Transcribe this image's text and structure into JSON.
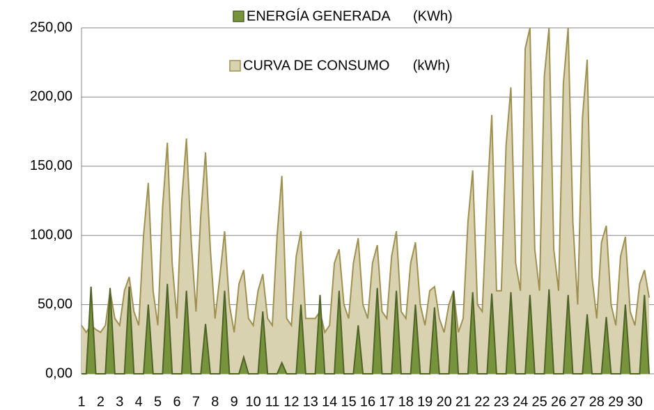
{
  "chart_data": {
    "type": "area",
    "x": [
      1,
      1.25,
      1.5,
      1.75,
      2,
      2.25,
      2.5,
      2.75,
      3,
      3.25,
      3.5,
      3.75,
      4,
      4.25,
      4.5,
      4.75,
      5,
      5.25,
      5.5,
      5.75,
      6,
      6.25,
      6.5,
      6.75,
      7,
      7.25,
      7.5,
      7.75,
      8,
      8.25,
      8.5,
      8.75,
      9,
      9.25,
      9.5,
      9.75,
      10,
      10.25,
      10.5,
      10.75,
      11,
      11.25,
      11.5,
      11.75,
      12,
      12.25,
      12.5,
      12.75,
      13,
      13.25,
      13.5,
      13.75,
      14,
      14.25,
      14.5,
      14.75,
      15,
      15.25,
      15.5,
      15.75,
      16,
      16.25,
      16.5,
      16.75,
      17,
      17.25,
      17.5,
      17.75,
      18,
      18.25,
      18.5,
      18.75,
      19,
      19.25,
      19.5,
      19.75,
      20,
      20.25,
      20.5,
      20.75,
      21,
      21.25,
      21.5,
      21.75,
      22,
      22.25,
      22.5,
      22.75,
      23,
      23.25,
      23.5,
      23.75,
      24,
      24.25,
      24.5,
      24.75,
      25,
      25.25,
      25.5,
      25.75,
      26,
      26.25,
      26.5,
      26.75,
      27,
      27.25,
      27.5,
      27.75,
      28,
      28.25,
      28.5,
      28.75,
      29,
      29.25,
      29.5,
      29.75,
      30,
      30.25,
      30.5,
      30.75
    ],
    "series": [
      {
        "name": "CURVA DE CONSUMO      (kWh)",
        "color": "#d8d2b0",
        "stroke": "#a09050",
        "values": [
          35,
          30,
          35,
          32,
          30,
          35,
          60,
          40,
          35,
          60,
          70,
          45,
          35,
          100,
          138,
          60,
          35,
          120,
          167,
          80,
          40,
          125,
          170,
          95,
          45,
          115,
          160,
          90,
          40,
          70,
          103,
          50,
          30,
          65,
          75,
          40,
          35,
          60,
          72,
          40,
          35,
          100,
          143,
          40,
          35,
          85,
          103,
          40,
          40,
          40,
          45,
          30,
          35,
          80,
          90,
          50,
          40,
          80,
          98,
          50,
          40,
          80,
          93,
          45,
          40,
          85,
          103,
          45,
          40,
          80,
          95,
          50,
          35,
          60,
          63,
          40,
          30,
          50,
          60,
          30,
          40,
          110,
          147,
          50,
          45,
          125,
          187,
          60,
          60,
          165,
          207,
          80,
          60,
          235,
          250,
          90,
          60,
          215,
          250,
          90,
          60,
          210,
          250,
          110,
          50,
          185,
          227,
          70,
          40,
          95,
          107,
          50,
          35,
          85,
          99,
          45,
          35,
          65,
          75,
          55
        ]
      },
      {
        "name": "ENERGÍA GENERADA      (KWh)",
        "color": "#77933c",
        "stroke": "#4f6228",
        "values": [
          0,
          0,
          63,
          0,
          0,
          0,
          62,
          0,
          0,
          0,
          63,
          0,
          0,
          0,
          50,
          0,
          0,
          0,
          65,
          0,
          0,
          0,
          60,
          0,
          0,
          0,
          36,
          0,
          0,
          0,
          60,
          0,
          0,
          0,
          12,
          0,
          0,
          0,
          45,
          0,
          0,
          0,
          8,
          0,
          0,
          0,
          50,
          0,
          0,
          0,
          57,
          0,
          0,
          0,
          60,
          0,
          0,
          0,
          35,
          0,
          0,
          0,
          62,
          0,
          0,
          0,
          60,
          0,
          0,
          0,
          50,
          0,
          0,
          0,
          48,
          0,
          0,
          0,
          60,
          0,
          0,
          0,
          59,
          0,
          0,
          0,
          58,
          0,
          0,
          0,
          59,
          0,
          0,
          0,
          57,
          0,
          0,
          0,
          61,
          0,
          0,
          0,
          57,
          0,
          0,
          0,
          43,
          0,
          0,
          0,
          41,
          0,
          0,
          0,
          50,
          0,
          0,
          0,
          57,
          0
        ]
      }
    ],
    "xlim": [
      1,
      31
    ],
    "xticks": [
      1,
      2,
      3,
      4,
      5,
      6,
      7,
      8,
      9,
      10,
      11,
      12,
      13,
      14,
      15,
      16,
      17,
      18,
      19,
      20,
      21,
      22,
      23,
      24,
      25,
      26,
      27,
      28,
      29,
      30
    ],
    "ylim": [
      0,
      250
    ],
    "yticks": [
      {
        "value": 0,
        "label": "0,00"
      },
      {
        "value": 50,
        "label": "50,00"
      },
      {
        "value": 100,
        "label": "100,00"
      },
      {
        "value": 150,
        "label": "150,00"
      },
      {
        "value": 200,
        "label": "200,00"
      },
      {
        "value": 250,
        "label": "250,00"
      }
    ],
    "grid": true
  }
}
